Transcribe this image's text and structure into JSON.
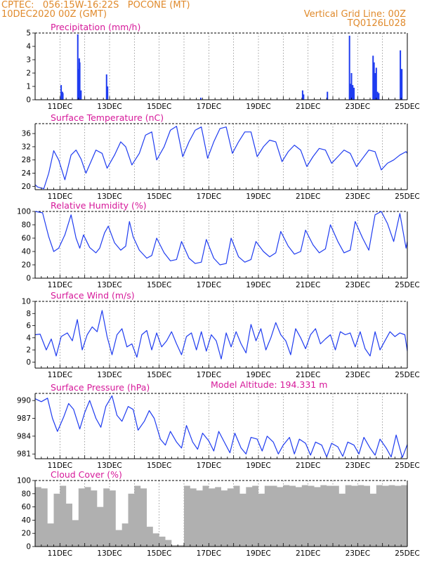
{
  "header": {
    "line1": "CPTEC:   056:15W-16:22S   POCONE (MT)",
    "line2": "10DEC2020 00Z (GMT)",
    "right1": "Vertical Grid Line: 00Z",
    "right2": "TQ0126L028"
  },
  "model_altitude_label": "Model Altitude: 194.331 m",
  "chart_data": [
    {
      "type": "bar",
      "title": "Precipitation (mm/h)",
      "color": "#1f3cf0",
      "x_range": [
        10,
        25
      ],
      "ylim": [
        0,
        5
      ],
      "yticks": [
        0,
        1,
        2,
        3,
        4,
        5
      ],
      "xticks": [
        11,
        13,
        15,
        17,
        19,
        21,
        23,
        25
      ],
      "xtick_labels": [
        "11DEC",
        "13DEC",
        "15DEC",
        "17DEC",
        "19DEC",
        "21DEC",
        "23DEC",
        "25DEC"
      ],
      "grid": true,
      "x": [
        11.05,
        11.1,
        11.12,
        11.72,
        11.75,
        11.78,
        11.8,
        11.85,
        12.88,
        12.92,
        16.68,
        20.78,
        20.82,
        21.78,
        22.67,
        22.72,
        22.75,
        22.8,
        22.85,
        23.62,
        23.66,
        23.7,
        23.75,
        23.8,
        23.85,
        24.72,
        24.75,
        24.78
      ],
      "values": [
        1.1,
        0.6,
        0.5,
        4.9,
        2.3,
        3.1,
        2.8,
        0.7,
        1.9,
        1.0,
        0.15,
        0.7,
        0.4,
        0.6,
        4.8,
        1.2,
        2.0,
        1.1,
        0.9,
        3.3,
        2.8,
        2.0,
        2.4,
        0.6,
        0.5,
        3.7,
        2.3,
        2.3
      ]
    },
    {
      "type": "line",
      "title": "Surface Temperature (nC)",
      "color": "#1f3cf0",
      "x_range": [
        10,
        25
      ],
      "ylim": [
        19,
        39
      ],
      "yticks": [
        20,
        24,
        28,
        32,
        36
      ],
      "xticks": [
        11,
        13,
        15,
        17,
        19,
        21,
        23,
        25
      ],
      "xtick_labels": [
        "11DEC",
        "13DEC",
        "15DEC",
        "17DEC",
        "19DEC",
        "21DEC",
        "23DEC",
        "25DEC"
      ],
      "grid": true,
      "x": [
        10.0,
        10.1,
        10.35,
        10.55,
        10.75,
        10.95,
        11.2,
        11.45,
        11.65,
        11.85,
        12.05,
        12.25,
        12.45,
        12.7,
        12.9,
        13.2,
        13.45,
        13.65,
        13.9,
        14.2,
        14.45,
        14.7,
        14.9,
        15.2,
        15.45,
        15.7,
        15.95,
        16.2,
        16.45,
        16.7,
        16.95,
        17.2,
        17.45,
        17.7,
        17.95,
        18.2,
        18.45,
        18.7,
        18.95,
        19.2,
        19.45,
        19.7,
        19.95,
        20.2,
        20.45,
        20.7,
        20.95,
        21.2,
        21.45,
        21.7,
        21.95,
        22.2,
        22.45,
        22.7,
        22.95,
        23.2,
        23.45,
        23.7,
        23.95,
        24.2,
        24.45,
        24.7,
        24.95,
        25.0
      ],
      "values": [
        20.5,
        19.8,
        19.3,
        24.0,
        30.8,
        28.0,
        22.0,
        29.5,
        31.0,
        28.3,
        24.0,
        27.5,
        31.0,
        30.0,
        25.5,
        29.5,
        33.5,
        32.0,
        26.5,
        30.0,
        35.5,
        36.5,
        28.0,
        32.0,
        37.0,
        38.2,
        29.0,
        33.5,
        37.0,
        38.0,
        28.5,
        33.5,
        37.5,
        38.0,
        30.0,
        33.5,
        36.5,
        36.5,
        29.0,
        32.0,
        34.0,
        33.5,
        27.5,
        30.5,
        32.5,
        31.0,
        26.0,
        29.0,
        31.5,
        31.0,
        27.0,
        29.0,
        31.0,
        30.0,
        26.0,
        28.5,
        31.0,
        30.5,
        25.0,
        27.0,
        28.0,
        29.5,
        30.5,
        30.0
      ]
    },
    {
      "type": "line",
      "title": "Relative Humidity (%)",
      "color": "#1f3cf0",
      "x_range": [
        10,
        25
      ],
      "ylim": [
        0,
        100
      ],
      "yticks": [
        0,
        20,
        40,
        60,
        80,
        100
      ],
      "xticks": [
        11,
        13,
        15,
        17,
        19,
        21,
        23,
        25
      ],
      "xtick_labels": [
        "11DEC",
        "13DEC",
        "15DEC",
        "17DEC",
        "19DEC",
        "21DEC",
        "23DEC",
        "25DEC"
      ],
      "grid": true,
      "x": [
        10.0,
        10.3,
        10.55,
        10.75,
        10.95,
        11.2,
        11.45,
        11.65,
        11.8,
        11.95,
        12.2,
        12.45,
        12.6,
        12.8,
        12.95,
        13.2,
        13.45,
        13.65,
        13.8,
        13.95,
        14.2,
        14.5,
        14.7,
        14.9,
        15.2,
        15.45,
        15.7,
        15.9,
        16.2,
        16.45,
        16.7,
        16.9,
        17.2,
        17.45,
        17.7,
        17.9,
        18.2,
        18.45,
        18.7,
        18.9,
        19.2,
        19.45,
        19.7,
        19.9,
        20.2,
        20.45,
        20.7,
        20.9,
        21.2,
        21.45,
        21.7,
        21.9,
        22.2,
        22.45,
        22.7,
        22.9,
        23.2,
        23.45,
        23.7,
        23.95,
        24.2,
        24.45,
        24.7,
        24.95,
        25.0
      ],
      "values": [
        100.0,
        98.0,
        62.0,
        40.0,
        45.0,
        65.0,
        95.0,
        60.0,
        45.0,
        65.0,
        46.0,
        38.0,
        45.0,
        68.0,
        78.0,
        53.0,
        42.0,
        48.0,
        85.0,
        62.0,
        42.0,
        30.0,
        34.0,
        60.0,
        38.0,
        26.0,
        28.0,
        55.0,
        30.0,
        22.0,
        24.0,
        58.0,
        30.0,
        20.0,
        22.0,
        60.0,
        32.0,
        24.0,
        28.0,
        55.0,
        40.0,
        32.0,
        38.0,
        70.0,
        48.0,
        36.0,
        40.0,
        72.0,
        50.0,
        38.0,
        44.0,
        80.0,
        55.0,
        38.0,
        42.0,
        85.0,
        60.0,
        42.0,
        95.0,
        100.0,
        82.0,
        55.0,
        97.0,
        45.0,
        55.0
      ]
    },
    {
      "type": "line",
      "title": "Surface Wind (m/s)",
      "color": "#1f3cf0",
      "x_range": [
        10,
        25
      ],
      "ylim": [
        -1,
        10
      ],
      "yticks": [
        0,
        2,
        4,
        6,
        8,
        10
      ],
      "xticks": [
        11,
        13,
        15,
        17,
        19,
        21,
        23,
        25
      ],
      "xtick_labels": [
        "11DEC",
        "13DEC",
        "15DEC",
        "17DEC",
        "19DEC",
        "21DEC",
        "23DEC",
        "25DEC"
      ],
      "grid": true,
      "x": [
        10.0,
        10.2,
        10.45,
        10.65,
        10.85,
        11.05,
        11.3,
        11.5,
        11.7,
        11.9,
        12.1,
        12.3,
        12.5,
        12.7,
        12.9,
        13.1,
        13.3,
        13.5,
        13.7,
        13.9,
        14.1,
        14.3,
        14.5,
        14.7,
        14.9,
        15.1,
        15.3,
        15.5,
        15.7,
        15.9,
        16.1,
        16.3,
        16.5,
        16.7,
        16.9,
        17.1,
        17.3,
        17.5,
        17.7,
        17.9,
        18.1,
        18.3,
        18.5,
        18.7,
        18.9,
        19.1,
        19.3,
        19.5,
        19.7,
        19.9,
        20.1,
        20.3,
        20.5,
        20.7,
        20.9,
        21.1,
        21.3,
        21.5,
        21.7,
        21.9,
        22.1,
        22.3,
        22.5,
        22.7,
        22.9,
        23.1,
        23.3,
        23.5,
        23.7,
        23.9,
        24.1,
        24.3,
        24.5,
        24.7,
        24.9,
        25.0
      ],
      "values": [
        4.5,
        4.6,
        2.0,
        3.8,
        1.0,
        4.2,
        4.8,
        3.5,
        7.0,
        2.0,
        4.5,
        5.8,
        5.0,
        8.5,
        4.2,
        1.2,
        4.5,
        5.5,
        2.5,
        3.0,
        0.8,
        4.5,
        5.2,
        2.0,
        4.8,
        2.5,
        3.5,
        5.0,
        3.0,
        1.2,
        4.2,
        4.8,
        2.0,
        5.0,
        1.8,
        4.5,
        3.5,
        0.5,
        4.8,
        2.5,
        5.0,
        3.0,
        1.5,
        6.2,
        3.5,
        5.5,
        2.0,
        4.0,
        6.5,
        4.5,
        3.5,
        1.2,
        5.5,
        4.0,
        2.2,
        4.5,
        5.5,
        3.0,
        3.8,
        4.5,
        2.0,
        5.0,
        4.5,
        4.8,
        2.5,
        5.0,
        2.2,
        1.0,
        5.0,
        2.0,
        3.5,
        5.0,
        4.2,
        4.8,
        4.5,
        1.8
      ]
    },
    {
      "type": "line",
      "title": "Surface Pressure (hPa)",
      "color": "#1f3cf0",
      "x_range": [
        10,
        25
      ],
      "ylim": [
        980.2,
        991.2
      ],
      "yticks": [
        981,
        984,
        987,
        990
      ],
      "xticks": [
        11,
        13,
        15,
        17,
        19,
        21,
        23,
        25
      ],
      "xtick_labels": [
        "11DEC",
        "13DEC",
        "15DEC",
        "17DEC",
        "19DEC",
        "21DEC",
        "23DEC",
        "25DEC"
      ],
      "grid": true,
      "x": [
        10.0,
        10.25,
        10.5,
        10.7,
        10.9,
        11.15,
        11.35,
        11.55,
        11.8,
        12.0,
        12.2,
        12.45,
        12.65,
        12.85,
        13.1,
        13.3,
        13.5,
        13.75,
        13.95,
        14.15,
        14.4,
        14.6,
        14.8,
        15.05,
        15.25,
        15.45,
        15.7,
        15.9,
        16.1,
        16.35,
        16.55,
        16.75,
        17.0,
        17.2,
        17.4,
        17.65,
        17.85,
        18.05,
        18.3,
        18.5,
        18.7,
        18.95,
        19.15,
        19.35,
        19.6,
        19.8,
        20.0,
        20.25,
        20.45,
        20.65,
        20.9,
        21.1,
        21.3,
        21.55,
        21.75,
        21.95,
        22.2,
        22.4,
        22.6,
        22.85,
        23.05,
        23.25,
        23.5,
        23.7,
        23.9,
        24.15,
        24.35,
        24.55,
        24.8,
        25.0
      ],
      "values": [
        990.3,
        989.8,
        990.4,
        987.0,
        984.8,
        987.2,
        989.5,
        988.5,
        985.2,
        988.0,
        990.0,
        987.0,
        985.5,
        989.0,
        990.8,
        987.5,
        986.5,
        989.0,
        988.5,
        985.0,
        986.5,
        988.3,
        987.0,
        983.5,
        982.5,
        984.8,
        983.0,
        982.0,
        985.8,
        983.0,
        981.8,
        984.5,
        983.2,
        981.5,
        984.8,
        982.8,
        981.2,
        984.5,
        982.0,
        981.0,
        983.8,
        983.5,
        981.5,
        984.0,
        983.0,
        981.0,
        982.5,
        983.8,
        981.0,
        983.5,
        982.8,
        980.8,
        983.0,
        982.5,
        980.5,
        982.8,
        982.2,
        980.6,
        983.0,
        982.5,
        981.0,
        983.8,
        982.0,
        980.8,
        983.5,
        982.0,
        980.5,
        984.2,
        980.4,
        982.6
      ]
    },
    {
      "type": "bar",
      "title": "Cloud Cover (%)",
      "color": "#b0b0b0",
      "x_range": [
        10,
        25
      ],
      "ylim": [
        0,
        100
      ],
      "yticks": [
        0,
        20,
        40,
        60,
        80,
        100
      ],
      "xticks": [
        11,
        13,
        15,
        17,
        19,
        21,
        23,
        25
      ],
      "xtick_labels": [
        "11DEC",
        "13DEC",
        "15DEC",
        "17DEC",
        "19DEC",
        "21DEC",
        "23DEC",
        "25DEC"
      ],
      "grid": true,
      "x": [
        10.0,
        10.25,
        10.5,
        10.75,
        11.0,
        11.25,
        11.5,
        11.75,
        12.0,
        12.25,
        12.5,
        12.75,
        13.0,
        13.25,
        13.5,
        13.75,
        14.0,
        14.25,
        14.5,
        14.75,
        15.0,
        15.25,
        15.5,
        15.75,
        16.0,
        16.25,
        16.5,
        16.75,
        17.0,
        17.25,
        17.5,
        17.75,
        18.0,
        18.25,
        18.5,
        18.75,
        19.0,
        19.25,
        19.5,
        19.75,
        20.0,
        20.25,
        20.5,
        20.75,
        21.0,
        21.25,
        21.5,
        21.75,
        22.0,
        22.25,
        22.5,
        22.75,
        23.0,
        23.25,
        23.5,
        23.75,
        24.0,
        24.25,
        24.5,
        24.75
      ],
      "values": [
        90,
        88,
        35,
        80,
        92,
        65,
        40,
        88,
        90,
        85,
        60,
        88,
        85,
        25,
        35,
        80,
        92,
        88,
        30,
        20,
        15,
        10,
        2,
        2,
        92,
        88,
        85,
        92,
        88,
        90,
        85,
        88,
        92,
        80,
        90,
        92,
        80,
        92,
        92,
        90,
        93,
        92,
        90,
        93,
        92,
        90,
        93,
        92,
        92,
        80,
        93,
        92,
        93,
        92,
        80,
        93,
        92,
        93,
        92,
        93
      ]
    }
  ]
}
